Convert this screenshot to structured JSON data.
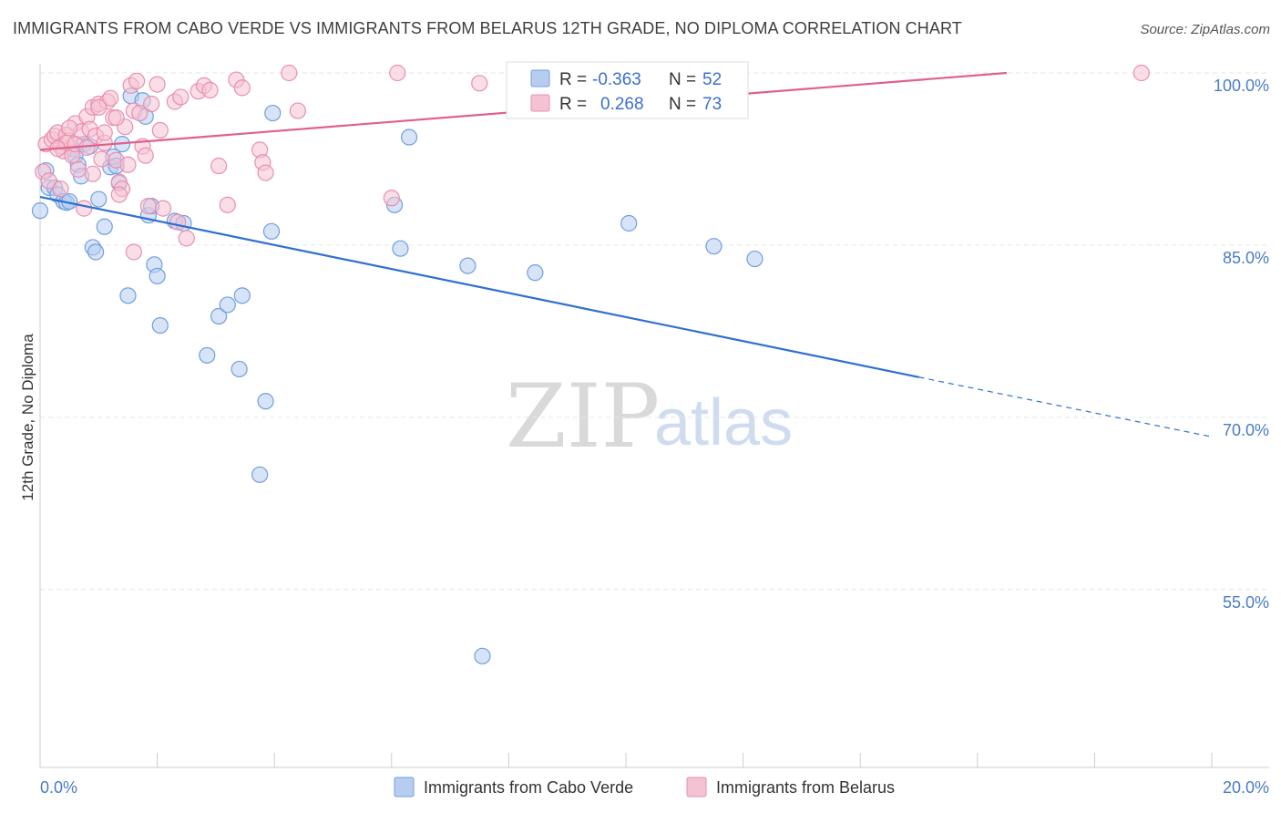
{
  "title": "IMMIGRANTS FROM CABO VERDE VS IMMIGRANTS FROM BELARUS 12TH GRADE, NO DIPLOMA CORRELATION CHART",
  "source": "Source: ZipAtlas.com",
  "watermark": {
    "zip": "ZIP",
    "atlas": "atlas"
  },
  "chart_data": {
    "type": "scatter",
    "title": "IMMIGRANTS FROM CABO VERDE VS IMMIGRANTS FROM BELARUS 12TH GRADE, NO DIPLOMA CORRELATION CHART",
    "xlabel": "",
    "ylabel": "12th Grade, No Diploma",
    "xlim": [
      0,
      20
    ],
    "ylim": [
      39.5,
      101
    ],
    "x_tick_labels": [
      "0.0%",
      "20.0%"
    ],
    "y_ticks": [
      {
        "value": 100,
        "label": "100.0%"
      },
      {
        "value": 85,
        "label": "85.0%"
      },
      {
        "value": 70,
        "label": "70.0%"
      },
      {
        "value": 55,
        "label": "55.0%"
      }
    ],
    "legend": [
      {
        "series": "Immigrants from Cabo Verde",
        "r_label": "R =",
        "r_value": "-0.363",
        "n_label": "N =",
        "n_value": "52"
      },
      {
        "series": "Immigrants from Belarus",
        "r_label": "R =",
        "r_value": "0.268",
        "n_label": "N =",
        "n_value": "73"
      }
    ],
    "series": [
      {
        "name": "Immigrants from Cabo Verde",
        "color": "#6f9fe0",
        "fill": "#b7cdf0",
        "trend": {
          "x_start": 0,
          "y_start": 89.2,
          "x_solid_end": 15.0,
          "y_solid_end": 73.5,
          "x_end": 20.0,
          "y_end": 68.3,
          "color": "#2f6fd0"
        },
        "points": [
          [
            0.0,
            88.0
          ],
          [
            0.1,
            91.5
          ],
          [
            0.15,
            90.0
          ],
          [
            0.25,
            90.0
          ],
          [
            0.3,
            89.4
          ],
          [
            0.4,
            88.8
          ],
          [
            0.45,
            88.7
          ],
          [
            0.5,
            88.8
          ],
          [
            0.55,
            93.4
          ],
          [
            0.6,
            92.8
          ],
          [
            0.65,
            92.0
          ],
          [
            0.7,
            91.0
          ],
          [
            0.75,
            93.8
          ],
          [
            0.85,
            93.6
          ],
          [
            0.9,
            84.8
          ],
          [
            0.95,
            84.4
          ],
          [
            1.1,
            86.6
          ],
          [
            1.2,
            91.8
          ],
          [
            1.25,
            92.7
          ],
          [
            1.3,
            91.9
          ],
          [
            1.35,
            90.4
          ],
          [
            1.4,
            93.8
          ],
          [
            1.5,
            80.6
          ],
          [
            1.55,
            98.0
          ],
          [
            1.75,
            97.6
          ],
          [
            1.8,
            96.2
          ],
          [
            1.85,
            87.6
          ],
          [
            1.9,
            88.4
          ],
          [
            1.95,
            83.3
          ],
          [
            2.0,
            82.3
          ],
          [
            2.05,
            78.0
          ],
          [
            2.3,
            87.1
          ],
          [
            2.45,
            86.9
          ],
          [
            2.85,
            75.4
          ],
          [
            3.05,
            78.8
          ],
          [
            3.2,
            79.8
          ],
          [
            3.4,
            74.2
          ],
          [
            3.45,
            80.6
          ],
          [
            3.75,
            65.0
          ],
          [
            3.85,
            71.4
          ],
          [
            3.95,
            86.2
          ],
          [
            3.97,
            96.5
          ],
          [
            6.05,
            88.5
          ],
          [
            6.15,
            84.7
          ],
          [
            6.3,
            94.4
          ],
          [
            7.3,
            83.2
          ],
          [
            7.55,
            49.2
          ],
          [
            8.45,
            82.6
          ],
          [
            10.05,
            86.9
          ],
          [
            11.5,
            84.9
          ],
          [
            12.2,
            83.8
          ],
          [
            1.0,
            89.0
          ]
        ]
      },
      {
        "name": "Immigrants from Belarus",
        "color": "#e98fae",
        "fill": "#f5c2d3",
        "trend": {
          "x_start": 0,
          "y_start": 93.3,
          "x_end": 16.5,
          "y_end": 100.0,
          "color": "#e0608c"
        },
        "points": [
          [
            0.05,
            91.4
          ],
          [
            0.1,
            93.8
          ],
          [
            0.15,
            90.6
          ],
          [
            0.2,
            94.2
          ],
          [
            0.25,
            94.5
          ],
          [
            0.3,
            94.8
          ],
          [
            0.35,
            93.6
          ],
          [
            0.4,
            93.2
          ],
          [
            0.45,
            94.6
          ],
          [
            0.5,
            94.1
          ],
          [
            0.55,
            92.8
          ],
          [
            0.6,
            95.6
          ],
          [
            0.65,
            91.6
          ],
          [
            0.7,
            94.9
          ],
          [
            0.75,
            88.2
          ],
          [
            0.8,
            96.2
          ],
          [
            0.85,
            95.1
          ],
          [
            0.9,
            97.0
          ],
          [
            0.95,
            94.5
          ],
          [
            1.0,
            97.3
          ],
          [
            1.05,
            92.5
          ],
          [
            1.1,
            93.9
          ],
          [
            1.15,
            97.5
          ],
          [
            1.2,
            97.8
          ],
          [
            1.25,
            96.1
          ],
          [
            1.3,
            92.4
          ],
          [
            1.35,
            90.5
          ],
          [
            1.4,
            89.9
          ],
          [
            1.45,
            95.3
          ],
          [
            1.5,
            92.0
          ],
          [
            1.55,
            98.9
          ],
          [
            1.6,
            96.7
          ],
          [
            1.65,
            99.3
          ],
          [
            1.7,
            96.5
          ],
          [
            1.75,
            93.6
          ],
          [
            1.8,
            92.8
          ],
          [
            1.85,
            88.4
          ],
          [
            1.9,
            97.3
          ],
          [
            2.0,
            99.0
          ],
          [
            2.05,
            95.0
          ],
          [
            2.1,
            88.2
          ],
          [
            2.3,
            97.5
          ],
          [
            2.4,
            97.9
          ],
          [
            2.5,
            85.6
          ],
          [
            2.7,
            98.4
          ],
          [
            2.8,
            98.9
          ],
          [
            2.9,
            98.5
          ],
          [
            3.05,
            91.9
          ],
          [
            3.2,
            88.5
          ],
          [
            3.35,
            99.4
          ],
          [
            3.45,
            98.7
          ],
          [
            3.75,
            93.3
          ],
          [
            3.8,
            92.2
          ],
          [
            3.85,
            91.3
          ],
          [
            4.25,
            100.0
          ],
          [
            4.4,
            96.7
          ],
          [
            6.0,
            89.1
          ],
          [
            6.1,
            100.0
          ],
          [
            7.5,
            99.1
          ],
          [
            18.8,
            100.0
          ],
          [
            0.35,
            89.9
          ],
          [
            0.45,
            93.9
          ],
          [
            1.6,
            84.4
          ],
          [
            1.0,
            97.0
          ],
          [
            1.3,
            96.1
          ],
          [
            0.6,
            93.8
          ],
          [
            1.35,
            89.4
          ],
          [
            2.35,
            87.0
          ],
          [
            0.8,
            93.5
          ],
          [
            1.1,
            94.8
          ],
          [
            0.9,
            91.2
          ],
          [
            0.5,
            95.2
          ],
          [
            0.3,
            93.4
          ]
        ]
      }
    ]
  }
}
